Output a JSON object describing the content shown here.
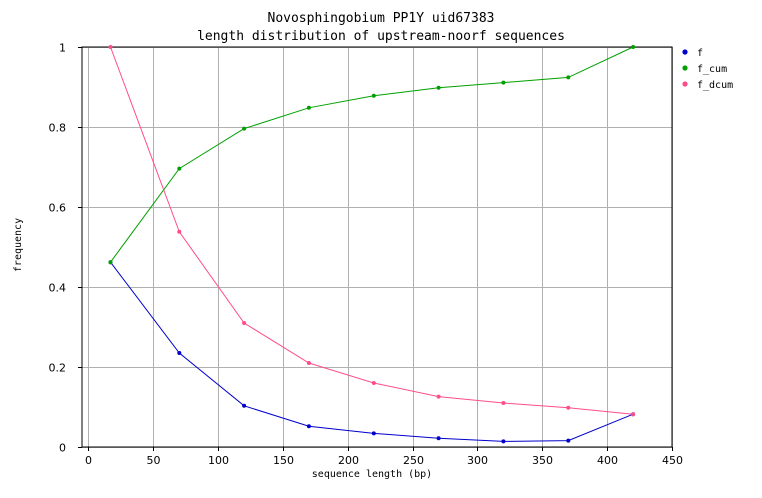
{
  "chart_data": {
    "type": "line",
    "title": "Novosphingobium PP1Y uid67383",
    "subtitle": "length distribution of upstream-noorf sequences",
    "xlabel": "sequence length (bp)",
    "ylabel": "frequency",
    "xlim": [
      -5,
      450
    ],
    "ylim": [
      0,
      1
    ],
    "xticks": [
      "0",
      "50",
      "100",
      "150",
      "200",
      "250",
      "300",
      "350",
      "400",
      "450"
    ],
    "yticks": [
      "0",
      "0.2",
      "0.4",
      "0.6",
      "0.8",
      "1"
    ],
    "xtick_values": [
      0,
      50,
      100,
      150,
      200,
      250,
      300,
      350,
      400,
      450
    ],
    "ytick_values": [
      0,
      0.2,
      0.4,
      0.6,
      0.8,
      1
    ],
    "grid": true,
    "legend_position": "top-right",
    "x": [
      17,
      70,
      120,
      170,
      220,
      270,
      320,
      370,
      420
    ],
    "series": [
      {
        "name": "f",
        "color": "#0000cc",
        "values": [
          0.462,
          0.235,
          0.103,
          0.052,
          0.034,
          0.022,
          0.014,
          0.016,
          0.082
        ]
      },
      {
        "name": "f_cum",
        "color": "#00a000",
        "values": [
          0.462,
          0.696,
          0.796,
          0.848,
          0.878,
          0.898,
          0.911,
          0.924,
          1.0
        ]
      },
      {
        "name": "f_dcum",
        "color": "#ff4d88",
        "values": [
          1.0,
          0.538,
          0.31,
          0.21,
          0.16,
          0.126,
          0.11,
          0.098,
          0.082
        ]
      }
    ]
  }
}
